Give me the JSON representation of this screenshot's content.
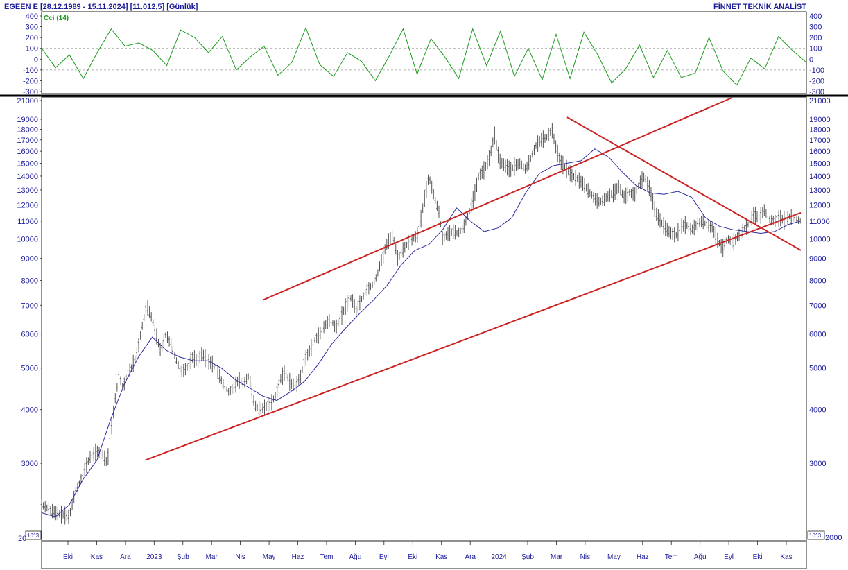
{
  "header": {
    "title": "EGEEN E  [28.12.1989 - 15.11.2024]  [11.012,5]  [Günlük]",
    "brand": "FİNNET TEKNİK ANALİST"
  },
  "indicator": {
    "label": "Cci (14)",
    "color": "#1a9a1a"
  },
  "corner_left": "20",
  "scale_note": "10^3",
  "scale_note_right": "10^3",
  "right_bottom_label": "2000",
  "colors": {
    "price_bars": "#555555",
    "moving_average": "#2a2aa0",
    "trend_lines": "#cc2222",
    "axis_text": "#1a1a99"
  },
  "chart_data": [
    {
      "type": "line",
      "name": "cci-panel",
      "ylabel": "",
      "yticks": [
        400,
        300,
        200,
        100,
        0,
        -100,
        -200,
        -300
      ],
      "ylim": [
        -300,
        400
      ],
      "reference_lines": [
        100,
        -100
      ],
      "x": [
        0,
        10,
        20,
        30,
        40,
        50,
        60,
        70,
        80,
        90,
        100,
        110,
        120,
        130,
        140,
        150,
        160,
        170,
        180,
        190,
        200,
        210,
        220,
        230,
        240,
        250,
        260,
        270,
        280,
        290,
        300,
        310,
        320,
        330,
        340,
        350,
        360,
        370,
        380,
        390,
        400,
        410,
        420,
        430,
        440,
        450,
        460,
        470,
        480,
        490,
        500,
        510,
        520,
        530,
        540,
        550
      ],
      "values": [
        100,
        -80,
        40,
        -180,
        60,
        280,
        120,
        150,
        80,
        -60,
        270,
        200,
        60,
        210,
        -100,
        20,
        120,
        -150,
        -30,
        290,
        -50,
        -160,
        60,
        -20,
        -200,
        30,
        280,
        -140,
        190,
        20,
        -180,
        280,
        -60,
        260,
        -160,
        100,
        -190,
        230,
        -180,
        250,
        40,
        -220,
        -90,
        130,
        -170,
        80,
        -170,
        -130,
        200,
        -110,
        -240,
        10,
        -90,
        210,
        80,
        -30
      ]
    },
    {
      "type": "line",
      "name": "price-panel",
      "ylabel": "",
      "yscale": "log",
      "ylim": [
        2000,
        21000
      ],
      "yticks": [
        3000,
        4000,
        5000,
        6000,
        7000,
        8000,
        9000,
        10000,
        11000,
        12000,
        13000,
        14000,
        15000,
        16000,
        17000,
        18000,
        19000,
        21000
      ],
      "xtick_labels": [
        "Eki",
        "Kas",
        "Ara",
        "2023",
        "Şub",
        "Mar",
        "Nis",
        "May",
        "Haz",
        "Tem",
        "Ağu",
        "Eyl",
        "Eki",
        "Kas",
        "Ara",
        "2024",
        "Şub",
        "Mar",
        "Nis",
        "May",
        "Haz",
        "Tem",
        "Ağu",
        "Eyl",
        "Eki",
        "Kas"
      ],
      "price": {
        "x": [
          0,
          10,
          20,
          30,
          40,
          48,
          55,
          62,
          70,
          80,
          88,
          95,
          100,
          106,
          112,
          118,
          125,
          130,
          138,
          145,
          152,
          160,
          168,
          172,
          180,
          188,
          195,
          202,
          210,
          218,
          225,
          232,
          240,
          248,
          255,
          262,
          270,
          278,
          285,
          292,
          300,
          308,
          315,
          322,
          330,
          338,
          345,
          352,
          360,
          368,
          375,
          380,
          388,
          395,
          402,
          410,
          418,
          425,
          432,
          440,
          448,
          455,
          462,
          470,
          478,
          485,
          492,
          500,
          508,
          515,
          522,
          530,
          538,
          545,
          552,
          560,
          568,
          575,
          580,
          588,
          595,
          602,
          610,
          618,
          625,
          632,
          640,
          648,
          655,
          662,
          670,
          678,
          685,
          692,
          700,
          708,
          715,
          722,
          730,
          738,
          745,
          752,
          760,
          768,
          775,
          782,
          790,
          798,
          805,
          812,
          820,
          828,
          835,
          842,
          850,
          858,
          865,
          872,
          880,
          888,
          895,
          902,
          910,
          918,
          925,
          932,
          940,
          948,
          955,
          962,
          970,
          978,
          985,
          992,
          1000,
          1008,
          1015,
          1022,
          1030,
          1038,
          1045,
          1052,
          1060,
          1068,
          1075,
          1082,
          1090,
          1098
        ],
        "values": [
          2400,
          2350,
          2300,
          2280,
          2250,
          2550,
          2700,
          2900,
          3100,
          3200,
          3150,
          3000,
          3500,
          4200,
          4800,
          4500,
          4900,
          5000,
          5400,
          6200,
          7000,
          6500,
          5800,
          5500,
          6000,
          5600,
          5200,
          4900,
          5000,
          5300,
          5200,
          5400,
          5200,
          5100,
          4900,
          4600,
          4400,
          4500,
          4700,
          4600,
          4800,
          4100,
          4000,
          4050,
          4100,
          4300,
          4700,
          4900,
          4600,
          4550,
          4800,
          5200,
          5500,
          5800,
          6000,
          6300,
          6500,
          6200,
          6500,
          7000,
          7300,
          6800,
          7200,
          7600,
          7800,
          8200,
          9000,
          9800,
          10200,
          9000,
          9400,
          9800,
          10000,
          10300,
          12000,
          14000,
          12500,
          11500,
          10000,
          10300,
          10400,
          10300,
          10600,
          11500,
          12500,
          14000,
          14500,
          15500,
          17500,
          15200,
          14800,
          14500,
          14800,
          15000,
          14500,
          15500,
          16500,
          17000,
          17200,
          18000,
          16000,
          15000,
          14500,
          14000,
          13800,
          13500,
          13000,
          12500,
          12200,
          12300,
          12600,
          12800,
          13300,
          12500,
          12800,
          12700,
          13500,
          14000,
          13000,
          11500,
          11000,
          10600,
          10300,
          10200,
          10700,
          10800,
          10500,
          10800,
          11000,
          10800,
          10600,
          9900,
          9500,
          10000,
          9800,
          10200,
          10500,
          10800,
          11400,
          11200,
          11700,
          11100,
          11000,
          11200,
          11000,
          11300,
          11100,
          11012
        ]
      },
      "moving_average": {
        "x": [
          0,
          20,
          40,
          60,
          80,
          100,
          120,
          140,
          160,
          180,
          200,
          220,
          240,
          260,
          280,
          300,
          320,
          340,
          360,
          380,
          400,
          420,
          440,
          460,
          480,
          500,
          520,
          540,
          560,
          580,
          600,
          620,
          640,
          660,
          680,
          700,
          720,
          740,
          760,
          780,
          800,
          820,
          840,
          860,
          880,
          900,
          920,
          940,
          960,
          980,
          1000,
          1020,
          1040,
          1060,
          1080,
          1098
        ],
        "values": [
          2300,
          2250,
          2400,
          2750,
          3050,
          3800,
          4600,
          5300,
          5900,
          5500,
          5300,
          5200,
          5200,
          5000,
          4700,
          4500,
          4300,
          4200,
          4400,
          4650,
          5100,
          5700,
          6200,
          6700,
          7200,
          7800,
          8700,
          9400,
          9700,
          10500,
          11800,
          11000,
          10400,
          10600,
          11200,
          12800,
          14200,
          14800,
          15000,
          15200,
          16200,
          15500,
          14300,
          13300,
          12800,
          12700,
          12900,
          12500,
          11200,
          10700,
          10500,
          10400,
          10300,
          10400,
          10800,
          11000
        ]
      },
      "trend_lines": [
        {
          "from": [
            320,
            7200
          ],
          "to": [
            1098,
            25000
          ]
        },
        {
          "from": [
            150,
            3050
          ],
          "to": [
            1098,
            11500
          ]
        },
        {
          "from": [
            760,
            19200
          ],
          "to": [
            1098,
            9400
          ]
        }
      ]
    }
  ]
}
